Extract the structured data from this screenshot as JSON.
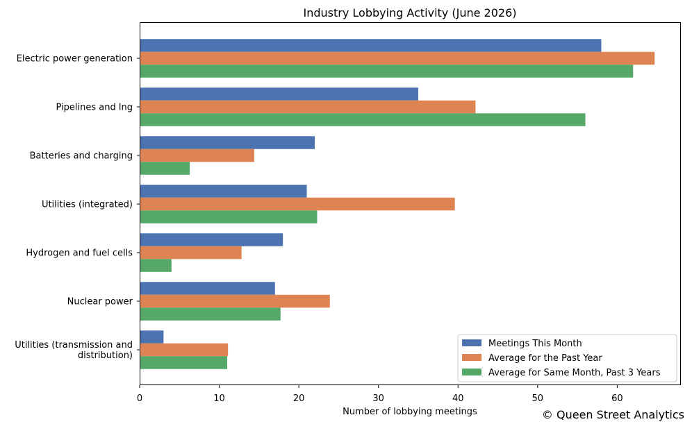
{
  "chart_data": {
    "type": "bar",
    "orientation": "horizontal",
    "title": "Industry Lobbying Activity (June 2026)",
    "xlabel": "Number of lobbying meetings",
    "ylabel": "",
    "xlim": [
      0,
      68
    ],
    "xticks": [
      0,
      10,
      20,
      30,
      40,
      50,
      60
    ],
    "grid": false,
    "legend_position": "bottom-right",
    "categories": [
      "Electric power generation",
      "Pipelines and lng",
      "Batteries and charging",
      "Utilities (integrated)",
      "Hydrogen and fuel cells",
      "Nuclear power",
      "Utilities (transmission and\ndistribution)"
    ],
    "series": [
      {
        "name": "Meetings This Month",
        "color": "#4c72b0",
        "values": [
          58,
          35,
          22,
          21,
          18,
          17,
          3
        ]
      },
      {
        "name": "Average for the Past Year",
        "color": "#dd8452",
        "values": [
          64.7,
          42.2,
          14.4,
          39.6,
          12.8,
          23.9,
          11.1
        ]
      },
      {
        "name": "Average for Same Month, Past 3 Years",
        "color": "#55a868",
        "values": [
          62,
          56,
          6.3,
          22.3,
          4,
          17.7,
          11
        ]
      }
    ]
  },
  "watermark": "© Queen Street Analytics"
}
